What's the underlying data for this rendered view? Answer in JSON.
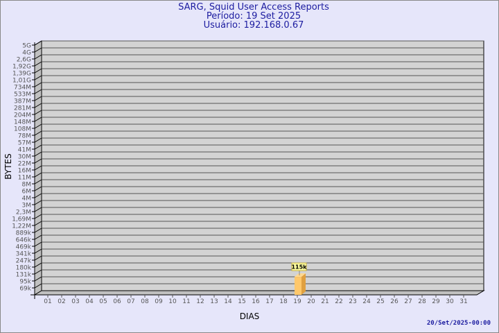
{
  "header": {
    "title": "SARG, Squid User Access Reports",
    "period": "Período: 19 Set 2025",
    "user": "Usuário: 192.168.0.67"
  },
  "footer": {
    "timestamp": "20/Set/2025-00:00"
  },
  "chart_data": {
    "type": "bar",
    "xlabel": "DIAS",
    "ylabel": "BYTES",
    "y_scale": "log",
    "y_tick_labels": [
      "5G",
      "4G",
      "2,6G",
      "1,92G",
      "1,39G",
      "1,01G",
      "734M",
      "533M",
      "387M",
      "281M",
      "204M",
      "148M",
      "108M",
      "78M",
      "57M",
      "41M",
      "30M",
      "22M",
      "16M",
      "11M",
      "8M",
      "6M",
      "4M",
      "3M",
      "2,3M",
      "1,69M",
      "1,22M",
      "889k",
      "646k",
      "469k",
      "341k",
      "247k",
      "180k",
      "131k",
      "95k",
      "69k"
    ],
    "categories": [
      "01",
      "02",
      "03",
      "04",
      "05",
      "06",
      "07",
      "08",
      "09",
      "10",
      "11",
      "12",
      "13",
      "14",
      "15",
      "16",
      "17",
      "18",
      "19",
      "20",
      "21",
      "22",
      "23",
      "24",
      "25",
      "26",
      "27",
      "28",
      "29",
      "30",
      "31"
    ],
    "bars": [
      {
        "category": "19",
        "value": "115k",
        "label": "115k"
      }
    ],
    "grid": true,
    "colors": {
      "plot": "#d3d3d3",
      "wall": "#c0c0c0",
      "bar_front": "#ffc86b",
      "bar_side": "#e0a040",
      "label_bg": "#ffffa0",
      "text": "#1c1ca0"
    }
  }
}
